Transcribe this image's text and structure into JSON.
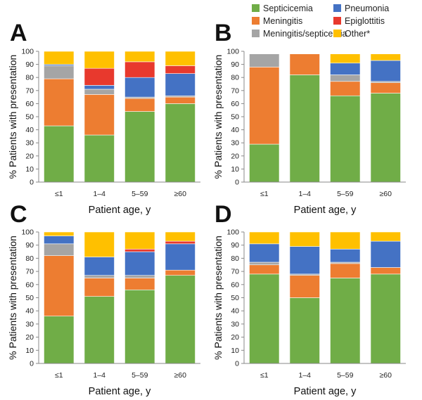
{
  "legend": [
    {
      "name": "Septicicemia",
      "color": "#70ad47"
    },
    {
      "name": "Pneumonia",
      "color": "#4472c4"
    },
    {
      "name": "Meningitis",
      "color": "#ed7d31"
    },
    {
      "name": "Epiglottitis",
      "color": "#e8392d"
    },
    {
      "name": "Meningitis/septicemia",
      "color": "#a5a5a5"
    },
    {
      "name": "Other*",
      "color": "#ffc000"
    }
  ],
  "chart_data": [
    {
      "type": "bar",
      "stacked": true,
      "panel_label": "A",
      "categories": [
        "≤1",
        "1–4",
        "5–59",
        "≥60"
      ],
      "ylabel": "% Patients with presentation",
      "xlabel": "Patient age, y",
      "ylim": [
        0,
        100
      ],
      "yticks": [
        0,
        10,
        20,
        30,
        40,
        50,
        60,
        70,
        80,
        90,
        100
      ],
      "series": [
        {
          "name": "Septicicemia",
          "values": [
            43,
            36,
            54,
            60
          ]
        },
        {
          "name": "Meningitis",
          "values": [
            36,
            31,
            10,
            5
          ]
        },
        {
          "name": "Meningitis/septicemia",
          "values": [
            10,
            4,
            1,
            1
          ]
        },
        {
          "name": "Pneumonia",
          "values": [
            1,
            3,
            15,
            17
          ]
        },
        {
          "name": "Epiglottitis",
          "values": [
            0,
            13,
            12,
            6
          ]
        },
        {
          "name": "Other*",
          "values": [
            10,
            13,
            8,
            11
          ]
        }
      ]
    },
    {
      "type": "bar",
      "stacked": true,
      "panel_label": "B",
      "categories": [
        "≤1",
        "1–4",
        "5–59",
        "≥60"
      ],
      "ylabel": "% Patients with presentation",
      "xlabel": "Patient age, y",
      "ylim": [
        0,
        100
      ],
      "yticks": [
        0,
        10,
        20,
        30,
        40,
        50,
        60,
        70,
        80,
        90,
        100
      ],
      "series": [
        {
          "name": "Septicicemia",
          "values": [
            29,
            82,
            66,
            68
          ]
        },
        {
          "name": "Meningitis",
          "values": [
            59,
            16,
            11,
            8
          ]
        },
        {
          "name": "Meningitis/septicemia",
          "values": [
            10,
            0,
            5,
            1
          ]
        },
        {
          "name": "Pneumonia",
          "values": [
            0,
            0,
            9,
            16
          ]
        },
        {
          "name": "Epiglottitis",
          "values": [
            0,
            0,
            0,
            0
          ]
        },
        {
          "name": "Other*",
          "values": [
            0,
            0,
            7,
            5
          ]
        }
      ]
    },
    {
      "type": "bar",
      "stacked": true,
      "panel_label": "C",
      "categories": [
        "≤1",
        "1–4",
        "5–59",
        "≥60"
      ],
      "ylabel": "% Patients with presentation",
      "xlabel": "Patient age, y",
      "ylim": [
        0,
        100
      ],
      "yticks": [
        0,
        10,
        20,
        30,
        40,
        50,
        60,
        70,
        80,
        90,
        100
      ],
      "series": [
        {
          "name": "Septicicemia",
          "values": [
            36,
            51,
            56,
            67
          ]
        },
        {
          "name": "Meningitis",
          "values": [
            46,
            14,
            9,
            4
          ]
        },
        {
          "name": "Meningitis/septicemia",
          "values": [
            9,
            2,
            2,
            0
          ]
        },
        {
          "name": "Pneumonia",
          "values": [
            6,
            14,
            18,
            20
          ]
        },
        {
          "name": "Epiglottitis",
          "values": [
            0,
            0,
            2,
            2
          ]
        },
        {
          "name": "Other*",
          "values": [
            3,
            19,
            13,
            7
          ]
        }
      ]
    },
    {
      "type": "bar",
      "stacked": true,
      "panel_label": "D",
      "categories": [
        "≤1",
        "1–4",
        "5–59",
        "≥60"
      ],
      "ylabel": "% Patients with presentation",
      "xlabel": "Patient age, y",
      "ylim": [
        0,
        100
      ],
      "yticks": [
        0,
        10,
        20,
        30,
        40,
        50,
        60,
        70,
        80,
        90,
        100
      ],
      "series": [
        {
          "name": "Septicicemia",
          "values": [
            68,
            50,
            65,
            68
          ]
        },
        {
          "name": "Meningitis",
          "values": [
            7,
            17,
            11,
            5
          ]
        },
        {
          "name": "Meningitis/septicemia",
          "values": [
            2,
            1,
            1,
            0
          ]
        },
        {
          "name": "Pneumonia",
          "values": [
            14,
            21,
            10,
            20
          ]
        },
        {
          "name": "Epiglottitis",
          "values": [
            0,
            0,
            0,
            0
          ]
        },
        {
          "name": "Other*",
          "values": [
            9,
            11,
            13,
            7
          ]
        }
      ]
    }
  ]
}
